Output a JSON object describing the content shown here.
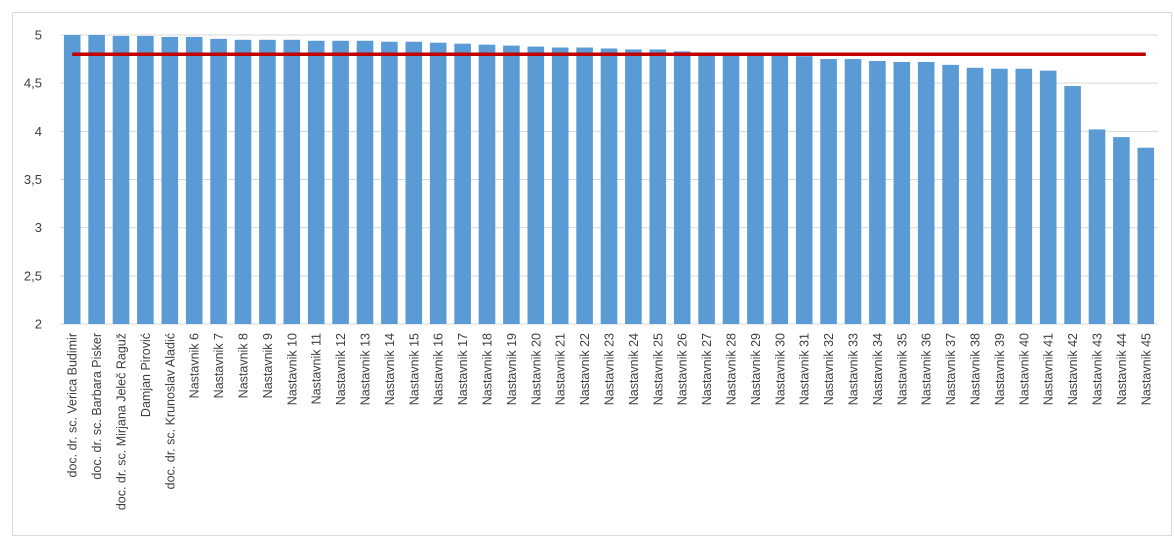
{
  "chart_data": {
    "type": "bar",
    "title": "",
    "xlabel": "",
    "ylabel": "",
    "ylim": [
      2,
      5
    ],
    "yticks": [
      2,
      2.5,
      3,
      3.5,
      4,
      4.5,
      5
    ],
    "ytick_labels": [
      "2",
      "2,5",
      "3",
      "3,5",
      "4",
      "4,5",
      "5"
    ],
    "grid": true,
    "legend": "none",
    "bar_color": "#5b9bd5",
    "reference_line": {
      "value": 4.8,
      "color": "#c00000"
    },
    "categories": [
      "doc. dr. sc. Verica Budimir",
      "doc. dr. sc. Barbara Pisker",
      "doc. dr. sc. Mirjana Jeleč Raguž",
      "Damjan Pirović",
      "doc. dr. sc. Krunoslav Aladić",
      "Nastavnik 6",
      "Nastavnik 7",
      "Nastavnik 8",
      "Nastavnik 9",
      "Nastavnik 10",
      "Nastavnik 11",
      "Nastavnik 12",
      "Nastavnik 13",
      "Nastavnik 14",
      "Nastavnik 15",
      "Nastavnik 16",
      "Nastavnik 17",
      "Nastavnik 18",
      "Nastavnik 19",
      "Nastavnik 20",
      "Nastavnik 21",
      "Nastavnik 22",
      "Nastavnik 23",
      "Nastavnik 24",
      "Nastavnik 25",
      "Nastavnik 26",
      "Nastavnik 27",
      "Nastavnik 28",
      "Nastavnik 29",
      "Nastavnik 30",
      "Nastavnik 31",
      "Nastavnik 32",
      "Nastavnik 33",
      "Nastavnik 34",
      "Nastavnik 35",
      "Nastavnik 36",
      "Nastavnik 37",
      "Nastavnik 38",
      "Nastavnik 39",
      "Nastavnik 40",
      "Nastavnik 41",
      "Nastavnik 42",
      "Nastavnik 43",
      "Nastavnik 44",
      "Nastavnik 45"
    ],
    "values": [
      5.0,
      5.0,
      4.99,
      4.99,
      4.98,
      4.98,
      4.96,
      4.95,
      4.95,
      4.95,
      4.94,
      4.94,
      4.94,
      4.93,
      4.93,
      4.92,
      4.91,
      4.9,
      4.89,
      4.88,
      4.87,
      4.87,
      4.86,
      4.85,
      4.85,
      4.83,
      4.81,
      4.8,
      4.8,
      4.79,
      4.78,
      4.75,
      4.75,
      4.73,
      4.72,
      4.72,
      4.69,
      4.66,
      4.65,
      4.65,
      4.63,
      4.47,
      4.02,
      3.94,
      3.83
    ]
  }
}
